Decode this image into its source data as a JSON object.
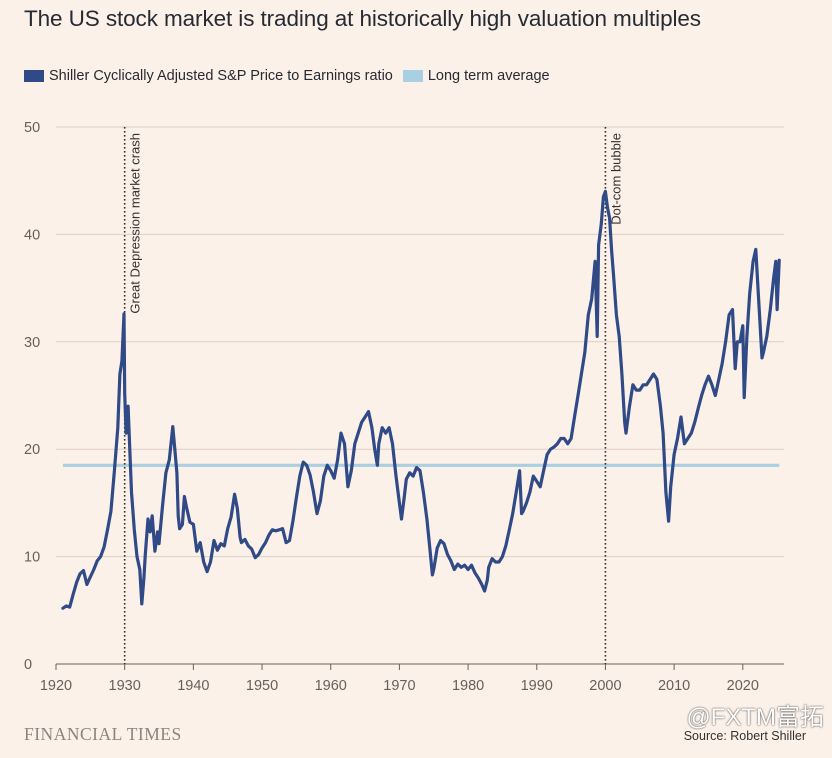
{
  "chart_data": {
    "type": "line",
    "title": "The US stock market is trading at historically high valuation multiples",
    "xlabel": "",
    "ylabel": "",
    "xlim": [
      1921,
      2025.5
    ],
    "ylim": [
      0,
      50
    ],
    "x_ticks": [
      "1920",
      "1930",
      "1940",
      "1950",
      "1960",
      "1970",
      "1980",
      "1990",
      "2000",
      "2010",
      "2020"
    ],
    "y_ticks": [
      "0",
      "10",
      "20",
      "30",
      "40",
      "50"
    ],
    "grid": "horizontal",
    "legend_position": "top-left",
    "series": [
      {
        "name": "Shiller Cyclically Adjusted S&P Price to Earnings ratio",
        "color": "#2f4a86",
        "points": [
          [
            1921,
            5.2
          ],
          [
            1921.5,
            5.4
          ],
          [
            1922,
            5.3
          ],
          [
            1922.5,
            6.5
          ],
          [
            1923,
            7.6
          ],
          [
            1923.5,
            8.4
          ],
          [
            1924,
            8.7
          ],
          [
            1924.5,
            7.4
          ],
          [
            1925,
            8.1
          ],
          [
            1925.5,
            8.8
          ],
          [
            1926,
            9.6
          ],
          [
            1926.5,
            10.0
          ],
          [
            1927,
            10.9
          ],
          [
            1927.5,
            12.5
          ],
          [
            1928,
            14.2
          ],
          [
            1928.5,
            18.0
          ],
          [
            1929,
            22.0
          ],
          [
            1929.3,
            27.0
          ],
          [
            1929.6,
            28.2
          ],
          [
            1929.9,
            32.6
          ],
          [
            1930.0,
            25.2
          ],
          [
            1930.2,
            21.5
          ],
          [
            1930.5,
            24.0
          ],
          [
            1930.8,
            19.0
          ],
          [
            1931,
            16.0
          ],
          [
            1931.4,
            12.5
          ],
          [
            1931.8,
            10.0
          ],
          [
            1932.2,
            8.8
          ],
          [
            1932.5,
            5.6
          ],
          [
            1932.8,
            8.0
          ],
          [
            1933,
            10.2
          ],
          [
            1933.4,
            13.5
          ],
          [
            1933.7,
            12.3
          ],
          [
            1934,
            13.8
          ],
          [
            1934.4,
            10.5
          ],
          [
            1934.8,
            12.3
          ],
          [
            1935,
            11.2
          ],
          [
            1935.5,
            14.7
          ],
          [
            1936,
            17.8
          ],
          [
            1936.5,
            19.0
          ],
          [
            1937,
            22.1
          ],
          [
            1937.3,
            20.0
          ],
          [
            1937.6,
            17.8
          ],
          [
            1937.8,
            13.8
          ],
          [
            1938,
            12.6
          ],
          [
            1938.4,
            13.0
          ],
          [
            1938.7,
            15.6
          ],
          [
            1939,
            14.6
          ],
          [
            1939.5,
            13.2
          ],
          [
            1940,
            13.0
          ],
          [
            1940.5,
            10.5
          ],
          [
            1941,
            11.3
          ],
          [
            1941.5,
            9.5
          ],
          [
            1942,
            8.6
          ],
          [
            1942.5,
            9.5
          ],
          [
            1943,
            11.5
          ],
          [
            1943.5,
            10.6
          ],
          [
            1944,
            11.2
          ],
          [
            1944.5,
            11.0
          ],
          [
            1945,
            12.6
          ],
          [
            1945.5,
            13.7
          ],
          [
            1946,
            15.8
          ],
          [
            1946.4,
            14.5
          ],
          [
            1946.8,
            11.8
          ],
          [
            1947,
            11.3
          ],
          [
            1947.5,
            11.6
          ],
          [
            1948,
            11.0
          ],
          [
            1948.5,
            10.7
          ],
          [
            1949,
            9.9
          ],
          [
            1949.5,
            10.2
          ],
          [
            1950,
            10.8
          ],
          [
            1950.5,
            11.3
          ],
          [
            1951,
            12.0
          ],
          [
            1951.5,
            12.5
          ],
          [
            1952,
            12.4
          ],
          [
            1952.5,
            12.5
          ],
          [
            1953,
            12.6
          ],
          [
            1953.5,
            11.3
          ],
          [
            1954,
            11.5
          ],
          [
            1954.5,
            13.3
          ],
          [
            1955,
            15.5
          ],
          [
            1955.5,
            17.5
          ],
          [
            1956,
            18.8
          ],
          [
            1956.5,
            18.5
          ],
          [
            1957,
            17.6
          ],
          [
            1957.5,
            16.0
          ],
          [
            1958,
            14.0
          ],
          [
            1958.5,
            15.2
          ],
          [
            1959,
            17.5
          ],
          [
            1959.5,
            18.5
          ],
          [
            1960,
            18.0
          ],
          [
            1960.5,
            17.3
          ],
          [
            1961,
            19.0
          ],
          [
            1961.5,
            21.5
          ],
          [
            1962,
            20.5
          ],
          [
            1962.5,
            16.5
          ],
          [
            1963,
            18.0
          ],
          [
            1963.5,
            20.5
          ],
          [
            1964,
            21.5
          ],
          [
            1964.5,
            22.5
          ],
          [
            1965,
            23.0
          ],
          [
            1965.5,
            23.5
          ],
          [
            1966,
            22.0
          ],
          [
            1966.4,
            20.0
          ],
          [
            1966.8,
            18.5
          ],
          [
            1967,
            20.5
          ],
          [
            1967.5,
            22.0
          ],
          [
            1968,
            21.5
          ],
          [
            1968.5,
            22.0
          ],
          [
            1969,
            20.5
          ],
          [
            1969.5,
            17.5
          ],
          [
            1970,
            15.0
          ],
          [
            1970.3,
            13.5
          ],
          [
            1970.7,
            15.5
          ],
          [
            1971,
            17.2
          ],
          [
            1971.5,
            17.8
          ],
          [
            1972,
            17.5
          ],
          [
            1972.5,
            18.3
          ],
          [
            1973,
            18.0
          ],
          [
            1973.5,
            16.0
          ],
          [
            1974,
            13.5
          ],
          [
            1974.4,
            11.0
          ],
          [
            1974.8,
            8.3
          ],
          [
            1975,
            8.8
          ],
          [
            1975.5,
            10.8
          ],
          [
            1976,
            11.5
          ],
          [
            1976.5,
            11.2
          ],
          [
            1977,
            10.2
          ],
          [
            1977.5,
            9.6
          ],
          [
            1978,
            8.8
          ],
          [
            1978.5,
            9.3
          ],
          [
            1979,
            9.0
          ],
          [
            1979.5,
            9.2
          ],
          [
            1980,
            8.8
          ],
          [
            1980.5,
            9.2
          ],
          [
            1981,
            8.5
          ],
          [
            1981.5,
            8.0
          ],
          [
            1982,
            7.4
          ],
          [
            1982.4,
            6.8
          ],
          [
            1982.8,
            7.8
          ],
          [
            1983,
            9.0
          ],
          [
            1983.5,
            9.8
          ],
          [
            1984,
            9.5
          ],
          [
            1984.5,
            9.5
          ],
          [
            1985,
            10.0
          ],
          [
            1985.5,
            11.0
          ],
          [
            1986,
            12.5
          ],
          [
            1986.5,
            14.0
          ],
          [
            1987,
            16.0
          ],
          [
            1987.5,
            18.0
          ],
          [
            1987.8,
            14.0
          ],
          [
            1988,
            14.2
          ],
          [
            1988.5,
            15.0
          ],
          [
            1989,
            16.0
          ],
          [
            1989.5,
            17.5
          ],
          [
            1990,
            17.0
          ],
          [
            1990.5,
            16.5
          ],
          [
            1991,
            18.0
          ],
          [
            1991.5,
            19.5
          ],
          [
            1992,
            20.0
          ],
          [
            1992.5,
            20.2
          ],
          [
            1993,
            20.5
          ],
          [
            1993.5,
            21.0
          ],
          [
            1994,
            21.0
          ],
          [
            1994.5,
            20.5
          ],
          [
            1995,
            21.0
          ],
          [
            1995.5,
            23.0
          ],
          [
            1996,
            25.0
          ],
          [
            1996.5,
            27.0
          ],
          [
            1997,
            29.0
          ],
          [
            1997.5,
            32.5
          ],
          [
            1998,
            34.0
          ],
          [
            1998.5,
            37.5
          ],
          [
            1998.8,
            30.5
          ],
          [
            1999,
            39.0
          ],
          [
            1999.4,
            41.0
          ],
          [
            1999.7,
            43.5
          ],
          [
            2000,
            44.0
          ],
          [
            2000.3,
            42.5
          ],
          [
            2000.6,
            41.5
          ],
          [
            2000.9,
            38.5
          ],
          [
            2001.2,
            36.0
          ],
          [
            2001.6,
            32.5
          ],
          [
            2002,
            30.5
          ],
          [
            2002.4,
            27.0
          ],
          [
            2002.8,
            22.5
          ],
          [
            2003,
            21.5
          ],
          [
            2003.5,
            24.0
          ],
          [
            2004,
            26.0
          ],
          [
            2004.5,
            25.5
          ],
          [
            2005,
            25.5
          ],
          [
            2005.5,
            26.0
          ],
          [
            2006,
            26.0
          ],
          [
            2006.5,
            26.5
          ],
          [
            2007,
            27.0
          ],
          [
            2007.5,
            26.5
          ],
          [
            2008,
            24.0
          ],
          [
            2008.4,
            21.5
          ],
          [
            2008.8,
            16.0
          ],
          [
            2009.2,
            13.3
          ],
          [
            2009.5,
            16.5
          ],
          [
            2010,
            19.5
          ],
          [
            2010.5,
            21.0
          ],
          [
            2011,
            23.0
          ],
          [
            2011.5,
            20.5
          ],
          [
            2012,
            21.0
          ],
          [
            2012.5,
            21.5
          ],
          [
            2013,
            22.5
          ],
          [
            2013.5,
            23.8
          ],
          [
            2014,
            25.0
          ],
          [
            2014.5,
            26.0
          ],
          [
            2015,
            26.8
          ],
          [
            2015.5,
            26.0
          ],
          [
            2016,
            25.0
          ],
          [
            2016.5,
            26.5
          ],
          [
            2017,
            28.0
          ],
          [
            2017.5,
            30.0
          ],
          [
            2018,
            32.5
          ],
          [
            2018.5,
            33.0
          ],
          [
            2018.9,
            27.5
          ],
          [
            2019.2,
            30.0
          ],
          [
            2019.6,
            30.0
          ],
          [
            2020,
            31.5
          ],
          [
            2020.2,
            24.8
          ],
          [
            2020.6,
            30.5
          ],
          [
            2021,
            34.5
          ],
          [
            2021.5,
            37.5
          ],
          [
            2021.9,
            38.6
          ],
          [
            2022.3,
            34.0
          ],
          [
            2022.8,
            28.5
          ],
          [
            2023,
            29.0
          ],
          [
            2023.5,
            30.5
          ],
          [
            2024,
            33.0
          ],
          [
            2024.5,
            36.0
          ],
          [
            2024.8,
            37.5
          ],
          [
            2025.0,
            33.0
          ],
          [
            2025.3,
            37.6
          ]
        ]
      },
      {
        "name": "Long term average",
        "color": "#a8cfe2",
        "points": [
          [
            1921,
            18.5
          ],
          [
            2025.3,
            18.5
          ]
        ]
      }
    ],
    "annotations": [
      {
        "x": 1930,
        "label": "Great Depression market crash"
      },
      {
        "x": 2000,
        "label": "Dot-com bubble"
      }
    ]
  },
  "footer": {
    "brand": "FINANCIAL TIMES",
    "source": "Source: Robert Shiller",
    "watermark": "@FXTM富拓"
  }
}
